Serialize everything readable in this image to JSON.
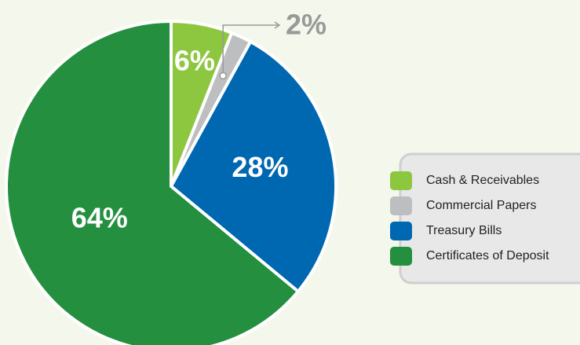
{
  "chart_data": {
    "type": "pie",
    "categories": [
      "Cash & Receivables",
      "Commercial Papers",
      "Treasury Bills",
      "Certificates of Deposit"
    ],
    "values": [
      6,
      2,
      28,
      64
    ],
    "value_labels": [
      "6%",
      "2%",
      "28%",
      "64%"
    ],
    "colors": [
      "#8dc63f",
      "#bcbec0",
      "#0067b1",
      "#238f3f"
    ],
    "legend": "right"
  }
}
